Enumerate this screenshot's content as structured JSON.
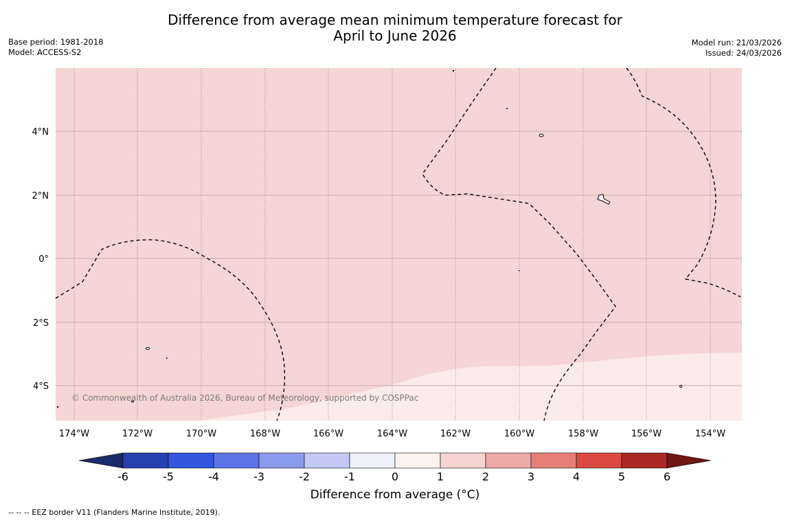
{
  "title": {
    "line1": "Difference from average mean minimum temperature forecast for",
    "line2": "April to June 2026"
  },
  "meta_left": {
    "base_period": "Base period: 1981-2018",
    "model": "Model: ACCESS-S2"
  },
  "meta_right": {
    "model_run": "Model run: 21/03/2026",
    "issued": "Issued: 24/03/2026"
  },
  "map": {
    "lon_labels": [
      "174°W",
      "172°W",
      "170°W",
      "168°W",
      "166°W",
      "164°W",
      "162°W",
      "160°W",
      "158°W",
      "156°W",
      "154°W"
    ],
    "lat_labels": [
      "4°N",
      "2°N",
      "0°",
      "2°S",
      "4°S"
    ],
    "copyright": "© Commonwealth of Australia 2026, Bureau of Meteorology, supported by COSPPac",
    "region_colors": {
      "band_1_to_2": "#f5d6d4",
      "band_0_to_1": "#fbebe9"
    }
  },
  "colorbar": {
    "label": "Difference from average (°C)",
    "ticks": [
      "-6",
      "-5",
      "-4",
      "-3",
      "-2",
      "-1",
      "0",
      "1",
      "2",
      "3",
      "4",
      "5",
      "6"
    ],
    "colors": [
      "#1b2a6b",
      "#2640b0",
      "#3355e0",
      "#5c74e6",
      "#8a9bed",
      "#c4caf5",
      "#eef0fc",
      "#fdf2f0",
      "#f6d4d2",
      "#eeaaa7",
      "#e57f78",
      "#db4a42",
      "#ac2a25",
      "#6e1713"
    ]
  },
  "footer": {
    "legend": "--  --  -- EEZ border V11 (Flanders Marine Institute, 2019)."
  }
}
